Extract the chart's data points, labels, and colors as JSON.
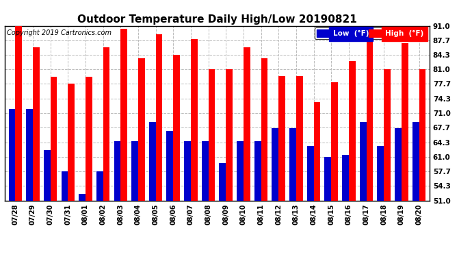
{
  "title": "Outdoor Temperature Daily High/Low 20190821",
  "copyright": "Copyright 2019 Cartronics.com",
  "dates": [
    "07/28",
    "07/29",
    "07/30",
    "07/31",
    "08/01",
    "08/02",
    "08/03",
    "08/04",
    "08/05",
    "08/06",
    "08/07",
    "08/08",
    "08/09",
    "08/10",
    "08/11",
    "08/12",
    "08/13",
    "08/14",
    "08/15",
    "08/16",
    "08/17",
    "08/18",
    "08/19",
    "08/20"
  ],
  "high": [
    91.0,
    86.0,
    79.3,
    77.7,
    79.3,
    86.0,
    90.3,
    83.5,
    89.0,
    84.3,
    88.0,
    81.0,
    81.0,
    86.0,
    83.5,
    79.5,
    79.5,
    73.5,
    78.0,
    83.0,
    88.0,
    81.0,
    87.0,
    81.0
  ],
  "low": [
    72.0,
    72.0,
    62.5,
    57.7,
    52.5,
    57.7,
    64.5,
    64.5,
    69.0,
    67.0,
    64.5,
    64.5,
    59.5,
    64.5,
    64.5,
    67.5,
    67.5,
    63.5,
    61.0,
    61.5,
    69.0,
    63.5,
    67.5,
    69.0
  ],
  "ylim": [
    51.0,
    91.0
  ],
  "yticks": [
    51.0,
    54.3,
    57.7,
    61.0,
    64.3,
    67.7,
    71.0,
    74.3,
    77.7,
    81.0,
    84.3,
    87.7,
    91.0
  ],
  "bar_width": 0.38,
  "high_color": "#ff0000",
  "low_color": "#0000cc",
  "bg_color": "#ffffff",
  "title_fontsize": 11,
  "copyright_fontsize": 7,
  "legend_low_label": "Low  (°F)",
  "legend_high_label": "High  (°F)"
}
